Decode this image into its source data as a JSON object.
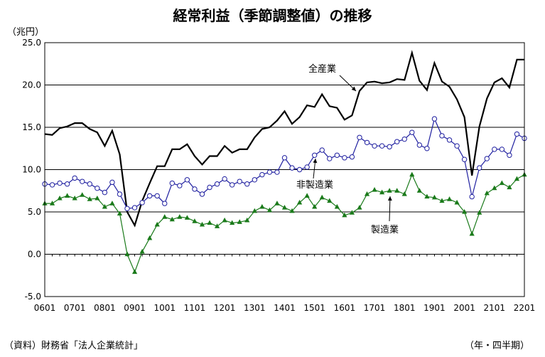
{
  "title": "経常利益（季節調整値）の推移",
  "unit_label": "（兆円）",
  "source_label": "（資料）財務省「法人企業統計」",
  "period_label": "（年・四半期）",
  "chart_data": {
    "type": "line",
    "x_tick_labels": [
      "0601",
      "0701",
      "0801",
      "0901",
      "1001",
      "1101",
      "1201",
      "1301",
      "1401",
      "1501",
      "1601",
      "1701",
      "1801",
      "1901",
      "2001",
      "2101",
      "2201"
    ],
    "y_tick_labels": [
      "25.0",
      "20.0",
      "15.0",
      "10.0",
      "5.0",
      "0.0",
      "-5.0"
    ],
    "ylim": [
      -5,
      25
    ],
    "grid": true,
    "series": [
      {
        "name": "全産業",
        "marker": "none",
        "color": "#000000",
        "values": [
          14.2,
          14.1,
          14.9,
          15.1,
          15.5,
          15.5,
          14.8,
          14.4,
          12.8,
          14.6,
          11.8,
          5.0,
          3.4,
          6.3,
          8.4,
          10.4,
          10.4,
          12.4,
          12.4,
          13.0,
          11.6,
          10.6,
          11.6,
          11.6,
          12.8,
          12.0,
          12.4,
          12.4,
          13.8,
          14.8,
          15.0,
          15.8,
          16.9,
          15.4,
          16.2,
          17.6,
          17.4,
          18.9,
          17.5,
          17.3,
          15.9,
          16.4,
          19.3,
          20.3,
          20.4,
          20.2,
          20.3,
          20.7,
          20.6,
          23.8,
          20.5,
          19.4,
          22.6,
          20.4,
          19.8,
          18.3,
          16.2,
          9.3,
          15.1,
          18.4,
          20.3,
          20.8,
          19.7,
          23.0,
          23.0
        ]
      },
      {
        "name": "非製造業",
        "marker": "open-circle",
        "color": "#1f1fa0",
        "values": [
          8.3,
          8.2,
          8.4,
          8.3,
          9.0,
          8.6,
          8.3,
          7.8,
          7.3,
          8.5,
          7.1,
          5.4,
          5.5,
          6.1,
          6.9,
          6.9,
          6.0,
          8.4,
          8.1,
          8.8,
          7.7,
          7.1,
          7.9,
          8.3,
          8.9,
          8.2,
          8.6,
          8.3,
          8.8,
          9.4,
          9.7,
          9.7,
          11.4,
          10.2,
          10.0,
          10.3,
          11.7,
          12.3,
          11.3,
          11.7,
          11.4,
          11.5,
          13.8,
          13.2,
          12.8,
          12.8,
          12.7,
          13.3,
          13.6,
          14.4,
          12.9,
          12.5,
          16.0,
          14.0,
          13.5,
          12.8,
          11.2,
          6.8,
          10.2,
          11.3,
          12.4,
          12.4,
          11.7,
          14.2,
          13.7
        ]
      },
      {
        "name": "製造業",
        "marker": "filled-triangle",
        "color": "#1a7a1a",
        "values": [
          6.0,
          6.0,
          6.6,
          6.9,
          6.6,
          7.0,
          6.5,
          6.6,
          5.6,
          6.0,
          4.8,
          0.0,
          -2.1,
          0.3,
          1.9,
          3.5,
          4.4,
          4.1,
          4.4,
          4.3,
          3.9,
          3.5,
          3.7,
          3.3,
          4.0,
          3.7,
          3.8,
          4.0,
          5.1,
          5.6,
          5.2,
          6.0,
          5.5,
          5.1,
          6.1,
          6.9,
          5.6,
          6.7,
          6.3,
          5.6,
          4.6,
          4.9,
          5.5,
          7.1,
          7.6,
          7.3,
          7.5,
          7.5,
          7.1,
          9.4,
          7.5,
          6.8,
          6.7,
          6.3,
          6.5,
          6.1,
          5.0,
          2.4,
          4.9,
          7.2,
          7.8,
          8.4,
          7.9,
          8.9,
          9.4
        ]
      }
    ],
    "annotations": [
      "全産業",
      "非製造業",
      "製造業"
    ]
  }
}
